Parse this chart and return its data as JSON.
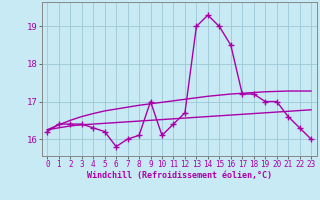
{
  "x_values": [
    0,
    1,
    2,
    3,
    4,
    5,
    6,
    7,
    8,
    9,
    10,
    11,
    12,
    13,
    14,
    15,
    16,
    17,
    18,
    19,
    20,
    21,
    22,
    23
  ],
  "line1": [
    16.2,
    16.4,
    16.4,
    16.4,
    16.3,
    16.2,
    15.8,
    16.0,
    16.1,
    17.0,
    16.1,
    16.4,
    16.7,
    19.0,
    19.3,
    19.0,
    18.5,
    17.2,
    17.2,
    17.0,
    17.0,
    16.6,
    16.3,
    16.0
  ],
  "line2": [
    16.25,
    16.3,
    16.35,
    16.38,
    16.4,
    16.42,
    16.44,
    16.46,
    16.48,
    16.5,
    16.52,
    16.54,
    16.56,
    16.58,
    16.6,
    16.62,
    16.64,
    16.66,
    16.68,
    16.7,
    16.72,
    16.74,
    16.76,
    16.78
  ],
  "line3": [
    16.25,
    16.38,
    16.5,
    16.6,
    16.68,
    16.75,
    16.8,
    16.85,
    16.9,
    16.94,
    16.98,
    17.02,
    17.06,
    17.1,
    17.14,
    17.17,
    17.2,
    17.22,
    17.24,
    17.26,
    17.27,
    17.28,
    17.28,
    17.28
  ],
  "line_color": "#aa00aa",
  "bg_color": "#c8eaf4",
  "grid_color": "#9ec8d8",
  "ylim": [
    15.55,
    19.65
  ],
  "xlim": [
    -0.5,
    23.5
  ],
  "yticks": [
    16,
    17,
    18,
    19
  ],
  "xticks": [
    0,
    1,
    2,
    3,
    4,
    5,
    6,
    7,
    8,
    9,
    10,
    11,
    12,
    13,
    14,
    15,
    16,
    17,
    18,
    19,
    20,
    21,
    22,
    23
  ],
  "xlabel": "Windchill (Refroidissement éolien,°C)",
  "marker": "+",
  "markersize": 4,
  "linewidth": 1.0,
  "tick_fontsize": 5.5,
  "xlabel_fontsize": 6.0
}
